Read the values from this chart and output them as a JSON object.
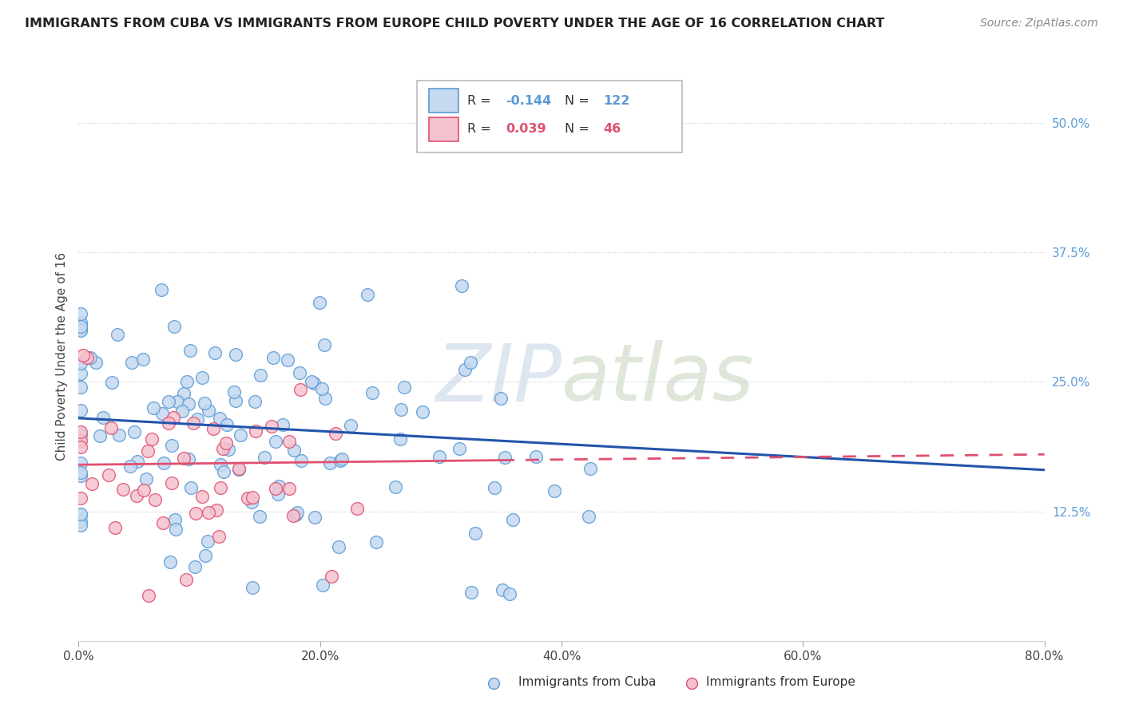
{
  "title": "IMMIGRANTS FROM CUBA VS IMMIGRANTS FROM EUROPE CHILD POVERTY UNDER THE AGE OF 16 CORRELATION CHART",
  "source": "Source: ZipAtlas.com",
  "ylabel": "Child Poverty Under the Age of 16",
  "xlim": [
    0.0,
    0.8
  ],
  "ylim": [
    0.0,
    0.55
  ],
  "xticks": [
    0.0,
    0.2,
    0.4,
    0.6,
    0.8
  ],
  "xtick_labels": [
    "0.0%",
    "20.0%",
    "40.0%",
    "60.0%",
    "80.0%"
  ],
  "yticks": [
    0.125,
    0.25,
    0.375,
    0.5
  ],
  "ytick_labels": [
    "12.5%",
    "25.0%",
    "37.5%",
    "50.0%"
  ],
  "cuba_color": "#c5d9f0",
  "cuba_edge_color": "#5b9bd5",
  "europe_color": "#f4c2ce",
  "europe_edge_color": "#e05070",
  "cuba_line_color": "#2255aa",
  "europe_line_color": "#e05070",
  "cuba_R": -0.144,
  "cuba_N": 122,
  "europe_R": 0.039,
  "europe_N": 46,
  "cuba_line_start_y": 0.215,
  "cuba_line_end_y": 0.165,
  "europe_line_start_y": 0.17,
  "europe_line_end_y": 0.18,
  "europe_line_end_x": 0.8
}
